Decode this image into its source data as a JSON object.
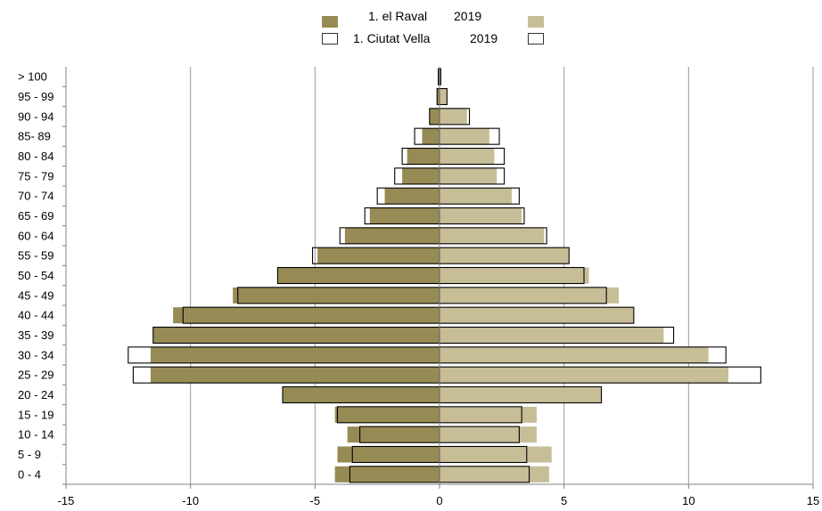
{
  "chart_data": {
    "type": "bar",
    "orientation": "horizontal",
    "layout": "population-pyramid",
    "categories": [
      "0 - 4",
      "5 - 9",
      "10 - 14",
      "15 - 19",
      "20 - 24",
      "25 - 29",
      "30 - 34",
      "35 - 39",
      "40 - 44",
      "45 - 49",
      "50 - 54",
      "55 - 59",
      "60 - 64",
      "65 - 69",
      "70 - 74",
      "75 - 79",
      "80 - 84",
      "85- 89",
      "90 - 94",
      "95 - 99",
      "> 100"
    ],
    "series": [
      {
        "name": "1. el Raval 2019",
        "style": "filled",
        "male": [
          -4.2,
          -4.1,
          -3.7,
          -4.2,
          -6.3,
          -11.6,
          -11.6,
          -11.5,
          -10.7,
          -8.3,
          -6.5,
          -4.9,
          -3.8,
          -2.8,
          -2.2,
          -1.5,
          -1.3,
          -0.7,
          -0.4,
          -0.1,
          -0.05
        ],
        "female": [
          4.4,
          4.5,
          3.9,
          3.9,
          6.5,
          11.6,
          10.8,
          9.0,
          7.8,
          7.2,
          6.0,
          5.2,
          4.2,
          3.3,
          2.9,
          2.3,
          2.2,
          2.0,
          1.1,
          0.3,
          0.05
        ]
      },
      {
        "name": "1. Ciutat Vella 2019",
        "style": "outline",
        "male": [
          -3.6,
          -3.5,
          -3.2,
          -4.1,
          -6.3,
          -12.3,
          -12.5,
          -11.5,
          -10.3,
          -8.1,
          -6.5,
          -5.1,
          -4.0,
          -3.0,
          -2.5,
          -1.8,
          -1.5,
          -1.0,
          -0.4,
          -0.1,
          -0.05
        ],
        "female": [
          3.6,
          3.5,
          3.2,
          3.3,
          6.5,
          12.9,
          11.5,
          9.4,
          7.8,
          6.7,
          5.8,
          5.2,
          4.3,
          3.4,
          3.2,
          2.6,
          2.6,
          2.4,
          1.2,
          0.3,
          0.05
        ]
      }
    ],
    "legend": {
      "rows": [
        {
          "name": "1. el Raval",
          "year": "2019"
        },
        {
          "name": "1. Ciutat Vella",
          "year": "2019"
        }
      ],
      "position": "top-center"
    },
    "xlim": [
      -15,
      15
    ],
    "xticks": [
      -15,
      -10,
      -5,
      0,
      5,
      10,
      15
    ],
    "grid": "vertical",
    "colors": {
      "raval_male": "#978b55",
      "raval_female": "#c7bd97",
      "outline": "#000000",
      "grid": "#9a9a9a",
      "axis": "#808080"
    },
    "title": "",
    "xlabel": "",
    "ylabel": ""
  }
}
